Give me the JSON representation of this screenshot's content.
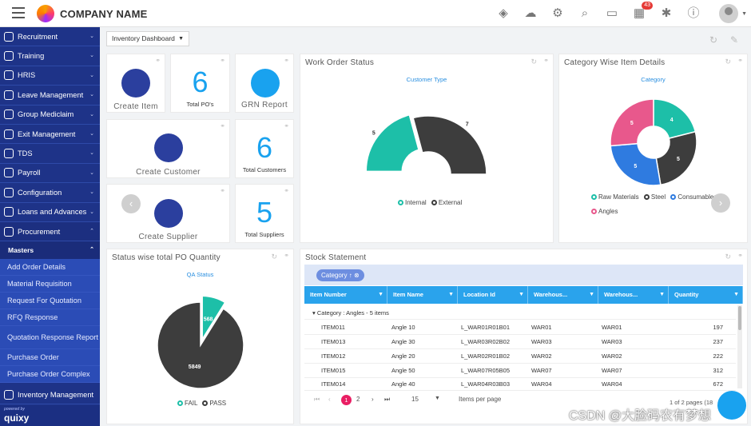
{
  "header": {
    "company": "COMPANY NAME",
    "icons": [
      "layers-plus-icon",
      "cloud-download-icon",
      "user-settings-icon",
      "search-icon",
      "chat-icon",
      "report-icon",
      "bug-icon",
      "info-icon"
    ],
    "notification_count": "43"
  },
  "sidebar": {
    "items": [
      {
        "label": "Recruitment",
        "icon": "user-icon"
      },
      {
        "label": "Training",
        "icon": "gear-icon"
      },
      {
        "label": "HRIS",
        "icon": "user-icon"
      },
      {
        "label": "Leave Management",
        "icon": "clock-icon"
      },
      {
        "label": "Group Mediclaim",
        "icon": "medical-icon"
      },
      {
        "label": "Exit Management",
        "icon": "exit-icon"
      },
      {
        "label": "TDS",
        "icon": "scissors-icon"
      },
      {
        "label": "Payroll",
        "icon": "money-icon"
      },
      {
        "label": "Configuration",
        "icon": "gear-icon"
      },
      {
        "label": "Loans and Advances",
        "icon": "dollar-icon"
      },
      {
        "label": "Procurement",
        "icon": "monitor-icon"
      }
    ],
    "submenu_header": "Masters",
    "sub_items": [
      "Add Order Details",
      "Material Requisition",
      "Request For Quotation",
      "RFQ Response",
      "Quotation Response Report",
      "Purchase Order",
      "Purchase Order Complex"
    ],
    "bottom_item": "Inventory Management",
    "powered_by": "powered by",
    "brand": "quixy"
  },
  "toolbar": {
    "dashboard_select": "Inventory Dashboard"
  },
  "tiles": {
    "create_item": "Create Item",
    "total_pos_value": "6",
    "total_pos_label": "Total PO's",
    "grn_report": "GRN Report",
    "create_customer": "Create Customer",
    "total_customers_value": "6",
    "total_customers_label": "Total Customers",
    "create_supplier": "Create Supplier",
    "total_suppliers_value": "5",
    "total_suppliers_label": "Total Suppliers"
  },
  "work_order": {
    "title": "Work Order Status",
    "subtitle": "Customer Type",
    "legend": [
      "Internal",
      "External"
    ],
    "colors": [
      "#1dbfa8",
      "#3d3d3d"
    ]
  },
  "category": {
    "title": "Category Wise Item Details",
    "subtitle": "Category",
    "legend": [
      "Raw Materials",
      "Steel",
      "Consumables",
      "Angles"
    ],
    "colors": [
      "#1dbfa8",
      "#3d3d3d",
      "#2f7be0",
      "#e8588c"
    ]
  },
  "po_quantity": {
    "title": "Status wise total PO Quantity",
    "subtitle": "QA Status",
    "legend": [
      "FAIL",
      "PASS"
    ],
    "colors": [
      "#1dbfa8",
      "#3d3d3d"
    ]
  },
  "stock": {
    "title": "Stock Statement",
    "group_chip": "Category",
    "columns": [
      "Item Number",
      "Item Name",
      "Location Id",
      "Warehous...",
      "Warehous...",
      "Quantity"
    ],
    "group_label": "Category : Angles - 5 items",
    "rows": [
      [
        "ITEM011",
        "Angle 10",
        "L_WAR01R01B01",
        "WAR01",
        "WAR01",
        "197"
      ],
      [
        "ITEM013",
        "Angle 30",
        "L_WAR03R02B02",
        "WAR03",
        "WAR03",
        "237"
      ],
      [
        "ITEM012",
        "Angle 20",
        "L_WAR02R01B02",
        "WAR02",
        "WAR02",
        "222"
      ],
      [
        "ITEM015",
        "Angle 50",
        "L_WAR07R05B05",
        "WAR07",
        "WAR07",
        "312"
      ],
      [
        "ITEM014",
        "Angle 40",
        "L_WAR04R03B03",
        "WAR04",
        "WAR04",
        "672"
      ]
    ],
    "pager": {
      "current": "1",
      "next": "2",
      "page_size": "15",
      "size_label": "Items per page",
      "summary": "1 of 2 pages (18"
    }
  },
  "watermark": "CSDN @大脸码农有梦想",
  "chart_data": [
    {
      "type": "pie",
      "title": "Customer Type",
      "categories": [
        "Internal",
        "External"
      ],
      "values": [
        5,
        7
      ]
    },
    {
      "type": "pie",
      "title": "Category",
      "categories": [
        "Raw Materials",
        "Steel",
        "Consumables",
        "Angles"
      ],
      "values": [
        4,
        5,
        5,
        5
      ]
    },
    {
      "type": "pie",
      "title": "QA Status",
      "categories": [
        "FAIL",
        "PASS"
      ],
      "values": [
        568,
        5849
      ]
    }
  ]
}
